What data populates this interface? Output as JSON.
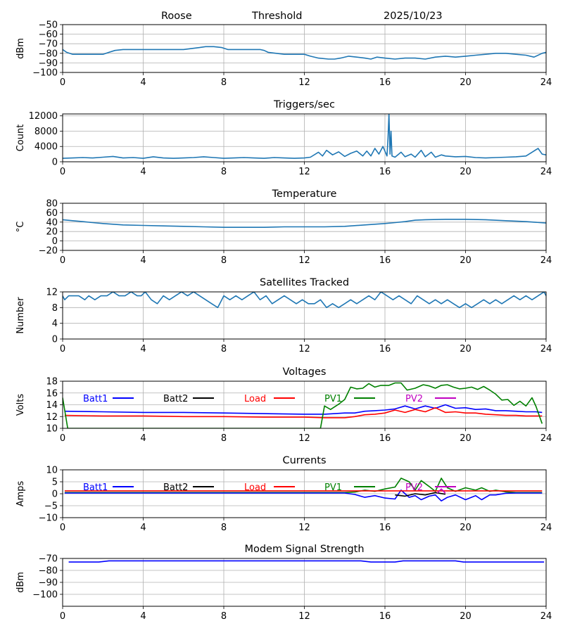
{
  "header": {
    "station": "Roose",
    "mode": "Threshold",
    "date": "2025/10/23"
  },
  "chart_data": [
    {
      "id": "signal",
      "type": "line",
      "title": "",
      "xlabel": "",
      "ylabel": "dBm",
      "xlim": [
        0,
        24
      ],
      "ylim": [
        -100,
        -50
      ],
      "xticks": [
        "0",
        "4",
        "8",
        "12",
        "16",
        "20",
        "24"
      ],
      "yticks": [
        "−50",
        "−60",
        "−70",
        "−80",
        "−90",
        "−100"
      ],
      "grid": true,
      "series": [
        {
          "name": "signal",
          "color": "#1f77b4",
          "x": [
            0,
            0.2,
            0.5,
            1,
            1.5,
            2,
            2.3,
            2.6,
            3,
            4,
            5,
            6,
            6.8,
            7.1,
            7.5,
            7.9,
            8.2,
            9,
            9.8,
            10,
            10.2,
            11,
            12,
            12.3,
            12.7,
            13.2,
            13.5,
            13.8,
            14.2,
            14.6,
            15,
            15.3,
            15.6,
            16,
            16.5,
            17,
            17.5,
            18,
            18.5,
            19,
            19.5,
            20,
            20.5,
            21,
            21.5,
            22,
            22.5,
            23,
            23.4,
            23.8,
            24
          ],
          "y": [
            -76,
            -79,
            -81,
            -81,
            -81,
            -81,
            -79,
            -77,
            -76,
            -76,
            -76,
            -76,
            -74,
            -73,
            -73,
            -74,
            -76,
            -76,
            -76,
            -77,
            -79,
            -81,
            -81,
            -83,
            -85,
            -86,
            -86,
            -85,
            -83,
            -84,
            -85,
            -86,
            -84,
            -85,
            -86,
            -85,
            -85,
            -86,
            -84,
            -83,
            -84,
            -83,
            -82,
            -81,
            -80,
            -80,
            -81,
            -82,
            -84,
            -80,
            -79
          ]
        }
      ]
    },
    {
      "id": "triggers",
      "type": "line",
      "title": "Triggers/sec",
      "xlabel": "",
      "ylabel": "Count",
      "xlim": [
        0,
        24
      ],
      "ylim": [
        0,
        12500
      ],
      "xticks": [
        "0",
        "4",
        "8",
        "12",
        "16",
        "20",
        "24"
      ],
      "yticks": [
        "0",
        "4000",
        "8000",
        "12000"
      ],
      "grid": true,
      "series": [
        {
          "name": "triggers",
          "color": "#1f77b4",
          "x": [
            0,
            0.5,
            1,
            1.5,
            2,
            2.5,
            3,
            3.5,
            4,
            4.5,
            5,
            5.5,
            6,
            6.5,
            7,
            7.5,
            8,
            8.5,
            9,
            9.5,
            10,
            10.5,
            11,
            11.5,
            12,
            12.3,
            12.7,
            12.9,
            13.1,
            13.4,
            13.7,
            14,
            14.3,
            14.6,
            14.9,
            15.1,
            15.3,
            15.5,
            15.7,
            15.9,
            16.1,
            16.15,
            16.2,
            16.25,
            16.3,
            16.35,
            16.5,
            16.8,
            17,
            17.3,
            17.5,
            17.8,
            18,
            18.3,
            18.5,
            18.8,
            19,
            19.5,
            20,
            20.5,
            21,
            21.5,
            22,
            22.5,
            23,
            23.3,
            23.6,
            23.8,
            24
          ],
          "y": [
            900,
            1000,
            1100,
            1000,
            1200,
            1400,
            1000,
            1100,
            900,
            1300,
            1000,
            900,
            1000,
            1100,
            1300,
            1100,
            900,
            1000,
            1100,
            1000,
            900,
            1100,
            1000,
            900,
            1000,
            1200,
            2500,
            1500,
            3000,
            1800,
            2600,
            1400,
            2200,
            2800,
            1500,
            2800,
            1500,
            3500,
            2000,
            4000,
            1500,
            6000,
            12500,
            2000,
            8000,
            1500,
            1200,
            2500,
            1300,
            2000,
            1200,
            3000,
            1300,
            2500,
            1200,
            1800,
            1500,
            1300,
            1400,
            1100,
            1000,
            1100,
            1200,
            1300,
            1500,
            2500,
            3500,
            2000,
            1800
          ]
        }
      ]
    },
    {
      "id": "temperature",
      "type": "line",
      "title": "Temperature",
      "xlabel": "",
      "ylabel": "°C",
      "xlim": [
        0,
        24
      ],
      "ylim": [
        -20,
        80
      ],
      "xticks": [
        "0",
        "4",
        "8",
        "12",
        "16",
        "20",
        "24"
      ],
      "yticks": [
        "80",
        "60",
        "40",
        "20",
        "0",
        "−20"
      ],
      "grid": true,
      "series": [
        {
          "name": "temperature",
          "color": "#1f77b4",
          "x": [
            0,
            0.5,
            1,
            1.5,
            2,
            3,
            4,
            5,
            6,
            7,
            8,
            9,
            10,
            11,
            12,
            13,
            14,
            15,
            16,
            16.5,
            17,
            17.5,
            18,
            19,
            20,
            21,
            22,
            23,
            24
          ],
          "y": [
            45,
            43,
            41,
            39,
            37,
            34,
            33,
            32,
            31,
            30,
            29,
            29,
            29,
            30,
            30,
            30,
            31,
            34,
            37,
            39,
            41,
            44,
            45,
            46,
            46,
            45,
            43,
            41,
            38
          ]
        }
      ]
    },
    {
      "id": "satellites",
      "type": "line",
      "title": "Satellites Tracked",
      "xlabel": "",
      "ylabel": "Number",
      "xlim": [
        0,
        24
      ],
      "ylim": [
        0,
        12
      ],
      "xticks": [
        "0",
        "4",
        "8",
        "12",
        "16",
        "20",
        "24"
      ],
      "yticks": [
        "12",
        "8",
        "4",
        "0"
      ],
      "grid": true,
      "series": [
        {
          "name": "satellites",
          "color": "#1f77b4",
          "x": [
            0,
            0.1,
            0.3,
            0.8,
            1.1,
            1.3,
            1.6,
            1.9,
            2.2,
            2.5,
            2.8,
            3.1,
            3.4,
            3.7,
            3.9,
            4.1,
            4.4,
            4.7,
            5.0,
            5.3,
            5.6,
            5.9,
            6.2,
            6.5,
            6.8,
            7.1,
            7.4,
            7.7,
            7.8,
            8.0,
            8.3,
            8.6,
            8.9,
            9.2,
            9.5,
            9.8,
            10.1,
            10.4,
            10.7,
            11.0,
            11.3,
            11.6,
            11.9,
            12.2,
            12.5,
            12.8,
            13.1,
            13.4,
            13.7,
            14.0,
            14.3,
            14.6,
            14.9,
            15.2,
            15.5,
            15.8,
            16.1,
            16.4,
            16.7,
            17.0,
            17.3,
            17.6,
            17.9,
            18.2,
            18.5,
            18.8,
            19.1,
            19.4,
            19.7,
            20.0,
            20.3,
            20.6,
            20.9,
            21.2,
            21.5,
            21.8,
            22.1,
            22.4,
            22.7,
            23.0,
            23.3,
            23.6,
            23.9,
            24
          ],
          "y": [
            11,
            10,
            11,
            11,
            10,
            11,
            10,
            11,
            11,
            12,
            11,
            11,
            12,
            11,
            11,
            12,
            10,
            9,
            11,
            10,
            11,
            12,
            11,
            12,
            11,
            10,
            9,
            8,
            9,
            11,
            10,
            11,
            10,
            11,
            12,
            10,
            11,
            9,
            10,
            11,
            10,
            9,
            10,
            9,
            9,
            10,
            8,
            9,
            8,
            9,
            10,
            9,
            10,
            11,
            10,
            12,
            11,
            10,
            11,
            10,
            9,
            11,
            10,
            9,
            10,
            9,
            10,
            9,
            8,
            9,
            8,
            9,
            10,
            9,
            10,
            9,
            10,
            11,
            10,
            11,
            10,
            11,
            12,
            11
          ]
        }
      ]
    },
    {
      "id": "voltages",
      "type": "line",
      "title": "Voltages",
      "xlabel": "",
      "ylabel": "Volts",
      "xlim": [
        0,
        24
      ],
      "ylim": [
        10,
        18
      ],
      "xticks": [
        "0",
        "4",
        "8",
        "12",
        "16",
        "20",
        "24"
      ],
      "yticks": [
        "18",
        "16",
        "14",
        "12",
        "10"
      ],
      "grid": true,
      "legend": [
        "Batt1",
        "Batt2",
        "Load",
        "PV1",
        "PV2"
      ],
      "series": [
        {
          "name": "Batt1",
          "color": "#0000ff",
          "x": [
            0.1,
            2,
            4,
            6,
            8,
            10,
            12,
            13,
            14,
            14.5,
            15,
            15.5,
            16,
            16.5,
            17,
            17.5,
            18,
            18.5,
            19,
            19.5,
            20,
            20.5,
            21,
            21.5,
            22,
            22.5,
            23,
            23.5,
            23.8
          ],
          "y": [
            12.9,
            12.8,
            12.7,
            12.7,
            12.6,
            12.5,
            12.4,
            12.4,
            12.6,
            12.6,
            12.9,
            13.0,
            13.1,
            13.3,
            13.8,
            13.3,
            13.8,
            13.4,
            14.0,
            13.4,
            13.5,
            13.2,
            13.3,
            13.0,
            13.0,
            12.9,
            12.8,
            12.8,
            12.7
          ]
        },
        {
          "name": "Load",
          "color": "#ff0000",
          "x": [
            0.1,
            2,
            4,
            6,
            8,
            10,
            12,
            13,
            14,
            14.5,
            15,
            15.5,
            16,
            16.5,
            17,
            17.5,
            18,
            18.5,
            19,
            19.5,
            20,
            20.5,
            21,
            21.5,
            22,
            22.5,
            23,
            23.5,
            23.8
          ],
          "y": [
            12.2,
            12.1,
            12.1,
            12.0,
            12.0,
            11.9,
            11.9,
            11.8,
            11.8,
            12.0,
            12.3,
            12.4,
            12.6,
            13.1,
            12.7,
            13.2,
            12.8,
            13.5,
            12.7,
            12.8,
            12.6,
            12.6,
            12.4,
            12.3,
            12.2,
            12.2,
            12.1,
            12.1,
            12.1
          ]
        },
        {
          "name": "PV1",
          "color": "#008000",
          "x": [
            0,
            0.25,
            12.8,
            13.0,
            13.3,
            13.7,
            14.0,
            14.3,
            14.6,
            14.9,
            15.2,
            15.5,
            15.8,
            16.2,
            16.5,
            16.8,
            17.1,
            17.5,
            17.9,
            18.2,
            18.5,
            18.8,
            19.1,
            19.4,
            19.7,
            20.0,
            20.3,
            20.6,
            20.9,
            21.2,
            21.5,
            21.8,
            22.1,
            22.4,
            22.7,
            23.0,
            23.3,
            23.5,
            23.8
          ],
          "y": [
            15.2,
            10,
            10,
            13.8,
            13.2,
            14.1,
            14.9,
            17.0,
            16.7,
            16.8,
            17.6,
            17.0,
            17.3,
            17.3,
            17.7,
            17.7,
            16.5,
            16.8,
            17.4,
            17.2,
            16.8,
            17.3,
            17.4,
            17.0,
            16.7,
            16.8,
            17.0,
            16.6,
            17.1,
            16.5,
            15.8,
            14.8,
            14.9,
            13.9,
            14.6,
            13.8,
            15.2,
            13.7,
            10.8
          ]
        }
      ]
    },
    {
      "id": "currents",
      "type": "line",
      "title": "Currents",
      "xlabel": "",
      "ylabel": "Amps",
      "xlim": [
        0,
        24
      ],
      "ylim": [
        -10,
        10
      ],
      "xticks": [
        "0",
        "4",
        "8",
        "12",
        "16",
        "20",
        "24"
      ],
      "yticks": [
        "10",
        "5",
        "0",
        "−5",
        "−10"
      ],
      "grid": true,
      "legend": [
        "Batt1",
        "Batt2",
        "Load",
        "PV1",
        "PV2"
      ],
      "series": [
        {
          "name": "PV1",
          "color": "#008000",
          "x": [
            0.1,
            4,
            8,
            12,
            14,
            14.5,
            15,
            15.5,
            16,
            16.5,
            16.8,
            17.2,
            17.5,
            17.8,
            18.2,
            18.5,
            18.8,
            19.1,
            19.5,
            20,
            20.5,
            20.8,
            21.2,
            21.5,
            22,
            22.5,
            23,
            23.5,
            23.8
          ],
          "y": [
            0.5,
            0.5,
            0.5,
            0.5,
            0.5,
            0.7,
            1.5,
            1.0,
            2.0,
            2.8,
            6.5,
            5.0,
            1.5,
            5.5,
            3.0,
            1.0,
            6.5,
            2.5,
            1.0,
            2.5,
            1.5,
            2.5,
            1.0,
            1.5,
            0.8,
            0.5,
            0.5,
            0.5,
            0.5
          ]
        },
        {
          "name": "Batt1",
          "color": "#0000ff",
          "x": [
            0.1,
            4,
            8,
            12,
            14,
            14.5,
            15,
            15.5,
            16,
            16.5,
            16.8,
            17.2,
            17.5,
            17.8,
            18.2,
            18.5,
            18.8,
            19.1,
            19.5,
            20,
            20.5,
            20.8,
            21.2,
            21.5,
            22,
            22.5,
            23,
            23.5,
            23.8
          ],
          "y": [
            0.3,
            0.3,
            0.3,
            0.3,
            0.3,
            -0.3,
            -1.5,
            -0.8,
            -1.8,
            -2.2,
            1.5,
            -1.5,
            -0.8,
            -2.5,
            -1.0,
            -0.5,
            -3.0,
            -1.5,
            -0.5,
            -2.5,
            -0.8,
            -2.5,
            -0.5,
            -0.5,
            0.2,
            0.3,
            0.3,
            0.3,
            0.3
          ]
        },
        {
          "name": "Load",
          "color": "#ff0000",
          "x": [
            0.1,
            4,
            8,
            12,
            16,
            20,
            23.8
          ],
          "y": [
            1.2,
            1.2,
            1.2,
            1.2,
            1.2,
            1.2,
            1.2
          ]
        },
        {
          "name": "Batt2",
          "color": "#000000",
          "x": [
            16.5,
            17.0,
            17.5,
            18.0,
            18.5,
            19.0
          ],
          "y": [
            -0.5,
            -1.0,
            0.0,
            -0.5,
            0.5,
            -0.2
          ]
        },
        {
          "name": "PV2",
          "color": "#c000c0",
          "x": [
            18.6,
            18.8,
            19.0
          ],
          "y": [
            0.3,
            2.0,
            0.2
          ]
        }
      ]
    },
    {
      "id": "modem",
      "type": "line",
      "title": "Modem Signal Strength",
      "xlabel": "",
      "ylabel": "dBm",
      "xlim": [
        0,
        24
      ],
      "ylim": [
        -110,
        -70
      ],
      "xticks": [
        "0",
        "4",
        "8",
        "12",
        "16",
        "20",
        "24"
      ],
      "yticks": [
        "−70",
        "−80",
        "−90",
        "−100"
      ],
      "grid": true,
      "series": [
        {
          "name": "modem",
          "color": "#0000ff",
          "x": [
            0.3,
            1.8,
            2.3,
            4,
            8,
            12,
            14.8,
            15.3,
            16.5,
            16.9,
            19.5,
            19.9,
            23.9
          ],
          "y": [
            -73,
            -73,
            -72,
            -72,
            -72,
            -72,
            -72,
            -73,
            -73,
            -72,
            -72,
            -73,
            -73
          ]
        }
      ]
    }
  ]
}
